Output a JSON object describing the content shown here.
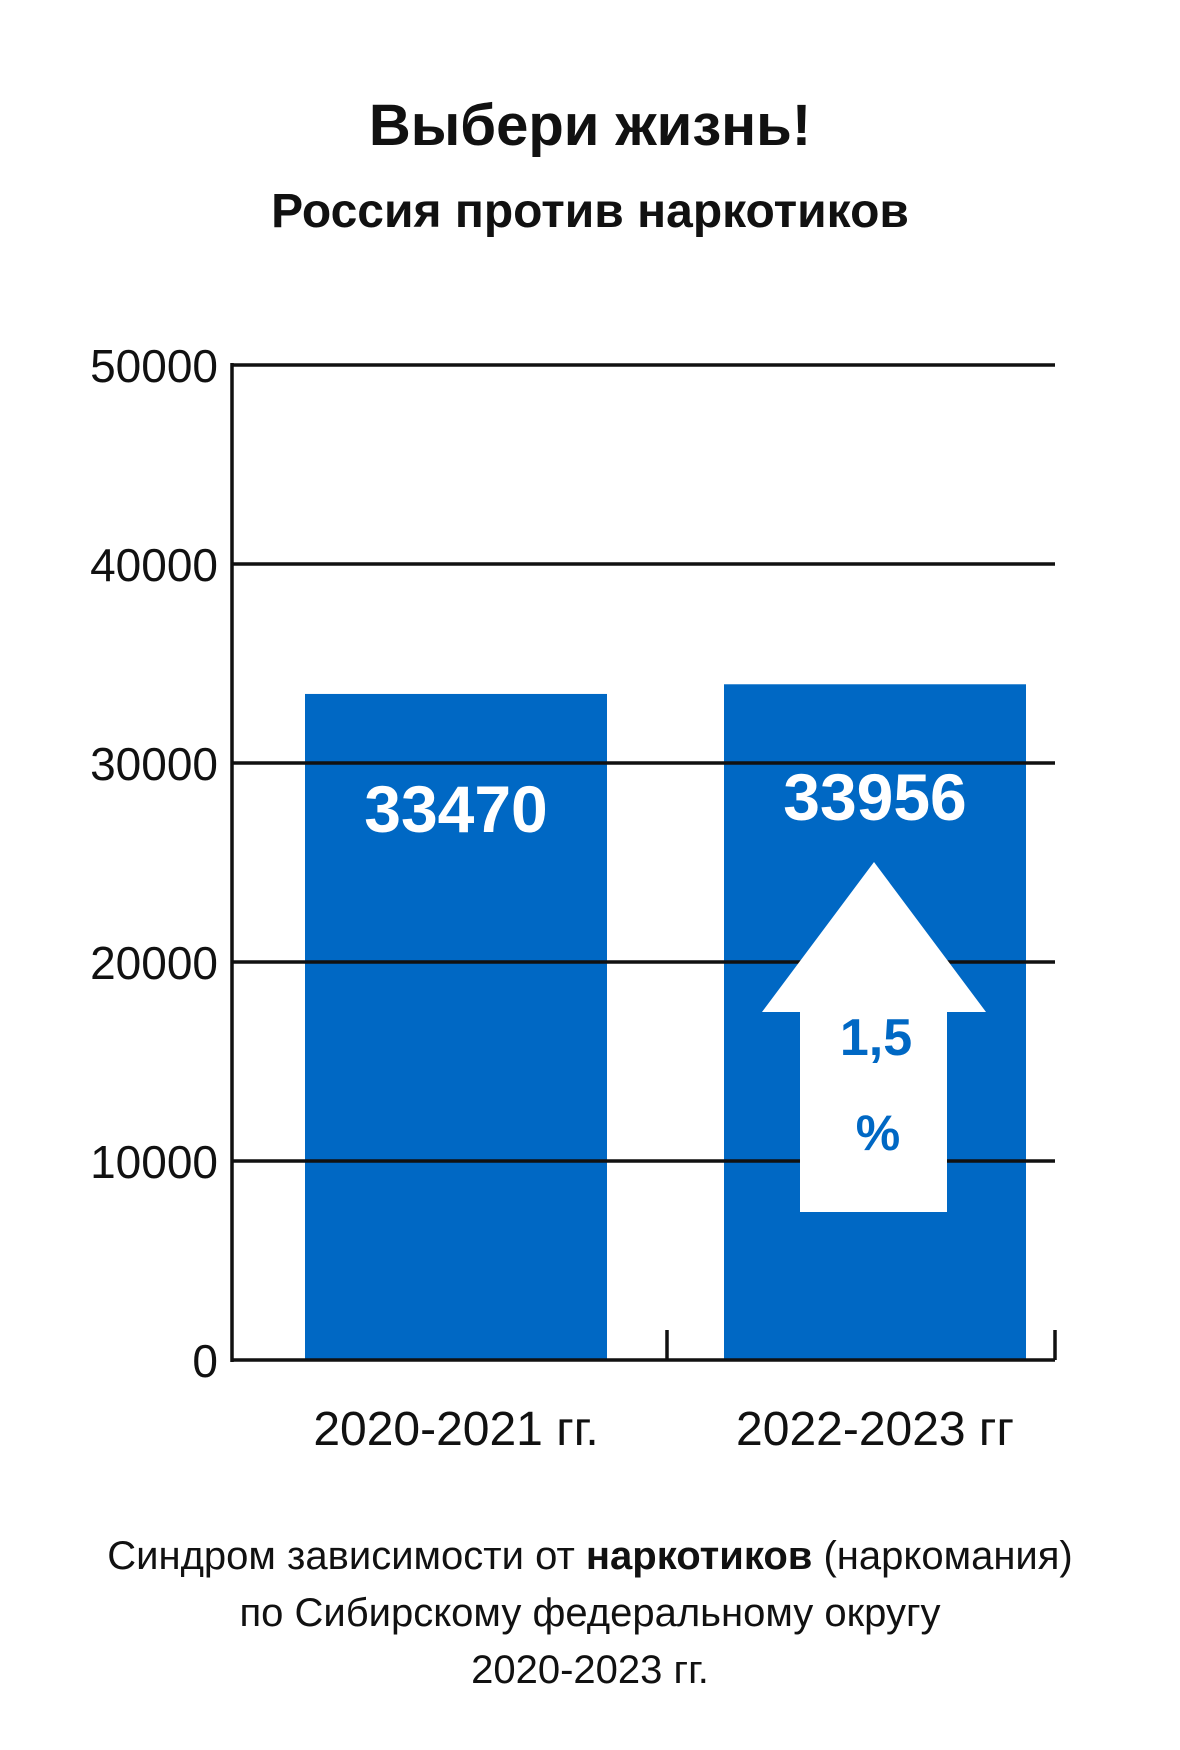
{
  "title": "Выбери жизнь!",
  "subtitle": "Россия против наркотиков",
  "colors": {
    "bar": "#0068c4",
    "text": "#111111",
    "arrow": "#ffffff",
    "arrow_text": "#0068c4"
  },
  "chart_data": {
    "type": "bar",
    "categories": [
      "2020-2021 гг.",
      "2022-2023 гг"
    ],
    "values": [
      33470,
      33956
    ],
    "value_labels": [
      "33470",
      "33956"
    ],
    "ylim": [
      0,
      50000
    ],
    "yticks": [
      0,
      10000,
      20000,
      30000,
      40000,
      50000
    ],
    "ytick_labels": [
      "0",
      "10000",
      "20000",
      "30000",
      "40000",
      "50000"
    ],
    "grid": true,
    "annotation": {
      "icon": "up-arrow-icon",
      "line1": "1,5",
      "line2": "%"
    }
  },
  "caption": {
    "line1_pre": "Синдром зависимости  от ",
    "line1_bold": "наркотиков",
    "line1_post": " (наркомания)",
    "line2": "по Сибирскому  федеральному округу",
    "line3": "2020-2023 гг."
  }
}
